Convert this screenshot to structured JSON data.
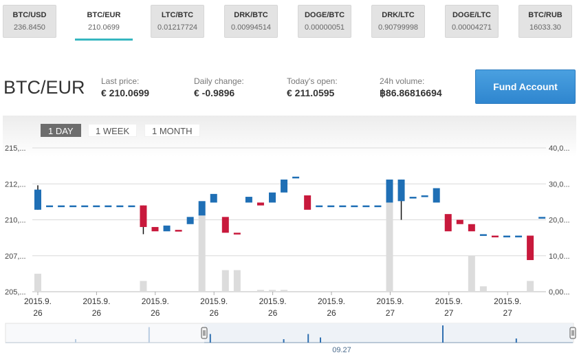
{
  "tickers": [
    {
      "pair": "BTC/USD",
      "value": "236.8450",
      "active": false
    },
    {
      "pair": "BTC/EUR",
      "value": "210.0699",
      "active": true
    },
    {
      "pair": "LTC/BTC",
      "value": "0.01217724",
      "active": false
    },
    {
      "pair": "DRK/BTC",
      "value": "0.00994514",
      "active": false
    },
    {
      "pair": "DOGE/BTC",
      "value": "0.00000051",
      "active": false
    },
    {
      "pair": "DRK/LTC",
      "value": "0.90799998",
      "active": false
    },
    {
      "pair": "DOGE/LTC",
      "value": "0.00004271",
      "active": false
    },
    {
      "pair": "BTC/RUB",
      "value": "16033.30",
      "active": false
    }
  ],
  "header": {
    "pair": "BTC/EUR",
    "last_price_label": "Last price:",
    "last_price": "€ 210.0699",
    "daily_change_label": "Daily change:",
    "daily_change": "€ -0.9896",
    "todays_open_label": "Today's open:",
    "todays_open": "€ 211.0595",
    "volume_label": "24h volume:",
    "volume": "฿86.86816694",
    "fund_button": "Fund Account"
  },
  "ranges": [
    "1 DAY",
    "1 WEEK",
    "1 MONTH"
  ],
  "active_range": 0,
  "chart_data": {
    "type": "candlestick",
    "y_ticks": [
      "215,...",
      "212,...",
      "210,...",
      "207,...",
      "205,..."
    ],
    "y_tick_values": [
      215,
      212.5,
      210,
      207.5,
      205
    ],
    "y_range": [
      205,
      215
    ],
    "y2_ticks": [
      "40,0...",
      "30,0...",
      "20,0...",
      "10,0...",
      "0,00..."
    ],
    "y2_tick_values": [
      40,
      30,
      20,
      10,
      0
    ],
    "y2_range": [
      0,
      40
    ],
    "x_ticks": [
      {
        "line1": "2015.9.",
        "line2": "26"
      },
      {
        "line1": "2015.9.",
        "line2": "26"
      },
      {
        "line1": "2015.9.",
        "line2": "26"
      },
      {
        "line1": "2015.9.",
        "line2": "26"
      },
      {
        "line1": "2015.9.",
        "line2": "26"
      },
      {
        "line1": "2015.9.",
        "line2": "26"
      },
      {
        "line1": "2015.9.",
        "line2": "27"
      },
      {
        "line1": "2015.9.",
        "line2": "27"
      },
      {
        "line1": "2015.9.",
        "line2": "27"
      }
    ],
    "up_color": "#1f6fb5",
    "down_color": "#c8193c",
    "volume_color": "#dcdcdc",
    "candles": [
      {
        "o": 210.7,
        "c": 212.1,
        "h": 212.4,
        "l": 210.7,
        "v": 5
      },
      {
        "o": 211.0,
        "c": 211.0,
        "h": 211.0,
        "l": 211.0,
        "v": 0
      },
      {
        "o": 211.0,
        "c": 211.0,
        "h": 211.0,
        "l": 211.0,
        "v": 0
      },
      {
        "o": 211.0,
        "c": 211.0,
        "h": 211.0,
        "l": 211.0,
        "v": 0
      },
      {
        "o": 211.0,
        "c": 211.0,
        "h": 211.0,
        "l": 211.0,
        "v": 0
      },
      {
        "o": 211.0,
        "c": 211.0,
        "h": 211.0,
        "l": 211.0,
        "v": 0
      },
      {
        "o": 211.0,
        "c": 211.0,
        "h": 211.0,
        "l": 211.0,
        "v": 0
      },
      {
        "o": 211.0,
        "c": 211.0,
        "h": 211.0,
        "l": 211.0,
        "v": 0
      },
      {
        "o": 211.0,
        "c": 211.0,
        "h": 211.0,
        "l": 211.0,
        "v": 0
      },
      {
        "o": 211.0,
        "c": 209.5,
        "h": 211.0,
        "l": 209.0,
        "v": 3
      },
      {
        "o": 209.5,
        "c": 209.2,
        "h": 209.5,
        "l": 209.2,
        "v": 0
      },
      {
        "o": 209.2,
        "c": 209.6,
        "h": 209.6,
        "l": 209.2,
        "v": 0
      },
      {
        "o": 209.3,
        "c": 209.2,
        "h": 209.3,
        "l": 209.2,
        "v": 0
      },
      {
        "o": 209.7,
        "c": 210.2,
        "h": 210.2,
        "l": 209.7,
        "v": 0
      },
      {
        "o": 210.3,
        "c": 211.3,
        "h": 211.3,
        "l": 210.3,
        "v": 22
      },
      {
        "o": 211.2,
        "c": 211.8,
        "h": 211.8,
        "l": 211.2,
        "v": 0
      },
      {
        "o": 210.2,
        "c": 209.1,
        "h": 210.2,
        "l": 209.1,
        "v": 6
      },
      {
        "o": 209.1,
        "c": 209.0,
        "h": 209.1,
        "l": 209.0,
        "v": 6
      },
      {
        "o": 211.2,
        "c": 211.6,
        "h": 211.6,
        "l": 211.2,
        "v": 0
      },
      {
        "o": 211.2,
        "c": 211.0,
        "h": 211.2,
        "l": 211.0,
        "v": 0.5
      },
      {
        "o": 211.2,
        "c": 211.9,
        "h": 211.9,
        "l": 211.2,
        "v": 0.5
      },
      {
        "o": 211.9,
        "c": 212.8,
        "h": 212.8,
        "l": 211.9,
        "v": 0.5
      },
      {
        "o": 212.9,
        "c": 213.0,
        "h": 213.0,
        "l": 212.9,
        "v": 0
      },
      {
        "o": 211.7,
        "c": 210.7,
        "h": 211.7,
        "l": 210.7,
        "v": 0
      },
      {
        "o": 211.0,
        "c": 211.0,
        "h": 211.0,
        "l": 211.0,
        "v": 0
      },
      {
        "o": 211.0,
        "c": 211.0,
        "h": 211.0,
        "l": 211.0,
        "v": 0
      },
      {
        "o": 211.0,
        "c": 211.0,
        "h": 211.0,
        "l": 211.0,
        "v": 0
      },
      {
        "o": 211.0,
        "c": 211.0,
        "h": 211.0,
        "l": 211.0,
        "v": 0
      },
      {
        "o": 211.0,
        "c": 211.0,
        "h": 211.0,
        "l": 211.0,
        "v": 0
      },
      {
        "o": 211.0,
        "c": 211.0,
        "h": 211.0,
        "l": 211.0,
        "v": 0
      },
      {
        "o": 211.2,
        "c": 212.8,
        "h": 212.8,
        "l": 211.2,
        "v": 31
      },
      {
        "o": 211.3,
        "c": 212.8,
        "h": 212.8,
        "l": 210.0,
        "v": 0
      },
      {
        "o": 211.5,
        "c": 211.6,
        "h": 211.6,
        "l": 211.5,
        "v": 0
      },
      {
        "o": 211.6,
        "c": 211.7,
        "h": 211.7,
        "l": 211.6,
        "v": 0
      },
      {
        "o": 211.2,
        "c": 212.2,
        "h": 212.2,
        "l": 211.2,
        "v": 0
      },
      {
        "o": 210.4,
        "c": 209.2,
        "h": 210.4,
        "l": 209.2,
        "v": 0
      },
      {
        "o": 210.0,
        "c": 209.7,
        "h": 210.0,
        "l": 209.7,
        "v": 0
      },
      {
        "o": 209.7,
        "c": 209.2,
        "h": 209.7,
        "l": 209.2,
        "v": 10
      },
      {
        "o": 209.0,
        "c": 209.0,
        "h": 209.0,
        "l": 209.0,
        "v": 1.5
      },
      {
        "o": 208.9,
        "c": 208.8,
        "h": 208.9,
        "l": 208.8,
        "v": 0
      },
      {
        "o": 208.9,
        "c": 208.9,
        "h": 208.9,
        "l": 208.9,
        "v": 0
      },
      {
        "o": 208.9,
        "c": 208.9,
        "h": 208.9,
        "l": 208.9,
        "v": 0
      },
      {
        "o": 208.9,
        "c": 207.2,
        "h": 208.9,
        "l": 207.2,
        "v": 3
      },
      {
        "o": 210.1,
        "c": 210.2,
        "h": 210.2,
        "l": 210.1,
        "v": 0
      }
    ]
  },
  "navigator": {
    "label": "09.27",
    "volume_bars": [
      {
        "i": 5,
        "v": 0.1
      },
      {
        "i": 11,
        "v": 0.45
      },
      {
        "i": 16,
        "v": 0.25
      },
      {
        "i": 22,
        "v": 0.1
      },
      {
        "i": 24,
        "v": 0.25
      },
      {
        "i": 25,
        "v": 0.15
      },
      {
        "i": 35,
        "v": 0.5
      },
      {
        "i": 41,
        "v": 0.12
      }
    ]
  }
}
